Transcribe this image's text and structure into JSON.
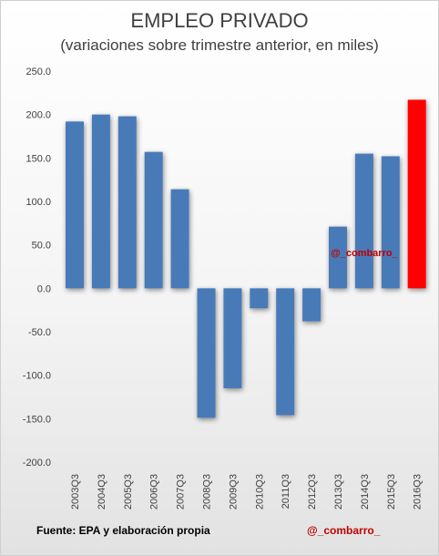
{
  "chart_data": {
    "type": "bar",
    "title": "EMPLEO PRIVADO",
    "subtitle": "(variaciones sobre trimestre anterior, en miles)",
    "categories": [
      "2003Q3",
      "2004Q3",
      "2005Q3",
      "2006Q3",
      "2007Q3",
      "2008Q3",
      "2009Q3",
      "2010Q3",
      "2011Q3",
      "2012Q3",
      "2013Q3",
      "2014Q3",
      "2015Q3",
      "2016Q3"
    ],
    "values": [
      192,
      200,
      198,
      157,
      114,
      -149,
      -115,
      -23,
      -146,
      -38,
      71,
      155,
      152,
      217
    ],
    "highlight_index": 13,
    "colors": {
      "bar": "#4a7ab8",
      "highlight": "#ff0000",
      "text": "#404040",
      "watermark": "#c00000"
    },
    "ylim": [
      -200,
      250
    ],
    "yticks": [
      -200,
      -150,
      -100,
      -50,
      0,
      50,
      100,
      150,
      200,
      250
    ],
    "ytick_labels": [
      "-200.0",
      "-150.0",
      "-100.0",
      "-50.0",
      "0.0",
      "50.0",
      "100.0",
      "150.0",
      "200.0",
      "250.0"
    ],
    "xlabel": "",
    "ylabel": "",
    "grid": false,
    "legend": false,
    "annotations": [
      "@_combarro_"
    ]
  },
  "footer": {
    "source": "Fuente: EPA y elaboración propia",
    "handle": "@_combarro_"
  }
}
